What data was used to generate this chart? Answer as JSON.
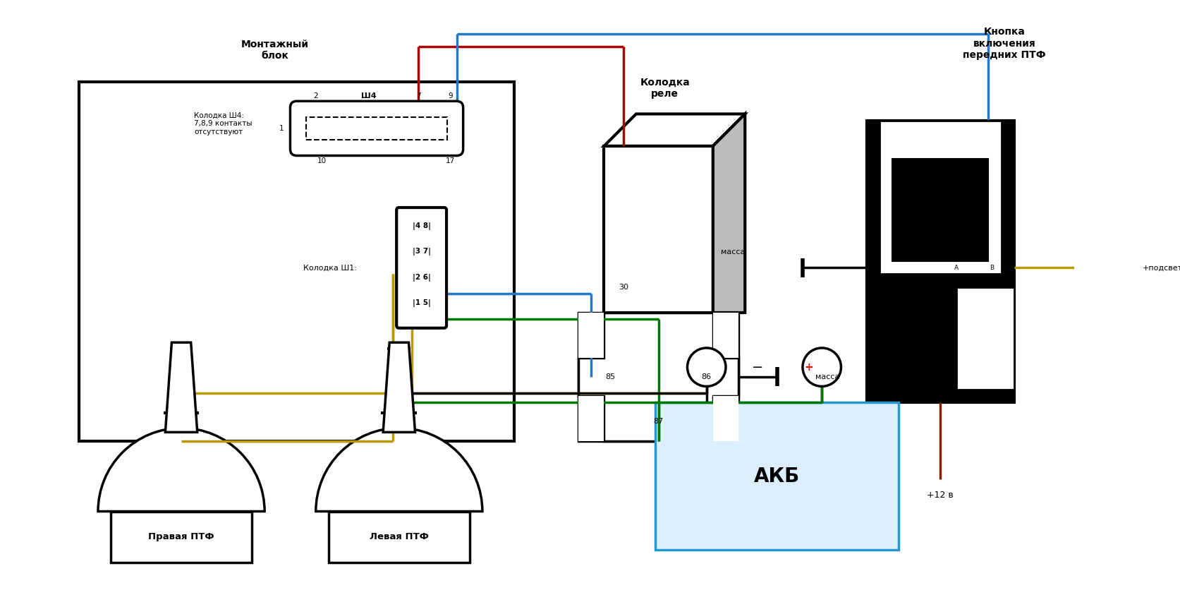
{
  "bg_color": "#ffffff",
  "fig_width": 16.74,
  "fig_height": 8.6,
  "text_montazh": "Монтажный\nблок",
  "text_kolodka_rele": "Колодка\nреле",
  "text_knopka": "Кнопка\nвключения\nпередних ПТФ",
  "text_sh4": "Колодка Ш4:\n7,8,9 контакты\nотсутствуют",
  "text_sh1": "Колодка Ш1:",
  "text_pravaya": "Правая ПТФ",
  "text_levaya": "Левая ПТФ",
  "text_akb": "АКБ",
  "text_massa1": "масса",
  "text_massa2": "масса",
  "text_podsvетka": "+подсветка",
  "text_12v": "+12 в",
  "color_blue": "#2277cc",
  "color_red": "#aa0000",
  "color_brown": "#882200",
  "color_green": "#007700",
  "color_yellow": "#bb9900",
  "color_akb_border": "#2299cc",
  "color_akb_fill": "#ddeeff"
}
